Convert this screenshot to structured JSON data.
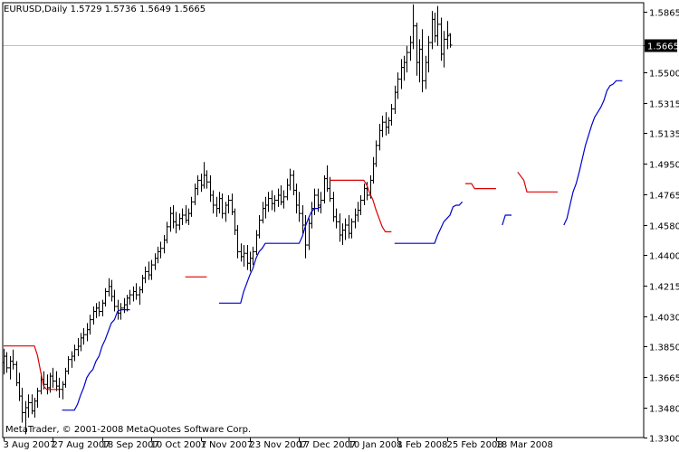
{
  "header": {
    "title": "EURUSD,Daily  1.5729 1.5736 1.5649 1.5665"
  },
  "footer": {
    "copyright": "MetaTrader, © 2001-2008 MetaQuotes Software Corp."
  },
  "colors": {
    "background": "#ffffff",
    "bars": "#000000",
    "stop_up": "#0000cc",
    "stop_down": "#dd0000",
    "current_line": "#c0c0c0",
    "price_tag": "#000000"
  },
  "chart_data": {
    "type": "ohlc",
    "symbol": "EURUSD",
    "timeframe": "Daily",
    "last_ohlc": {
      "open": 1.5729,
      "high": 1.5736,
      "low": 1.5649,
      "close": 1.5665
    },
    "current_price_label": "1.5665",
    "current_price": 1.5665,
    "ylim": [
      1.33,
      1.592
    ],
    "price_ticks": [
      "1.5865",
      "1.5665",
      "1.5500",
      "1.5315",
      "1.5135",
      "1.4950",
      "1.4765",
      "1.4580",
      "1.4400",
      "1.4215",
      "1.4030",
      "1.3850",
      "1.3665",
      "1.3480",
      "1.3300"
    ],
    "date_ticks": [
      "3 Aug 2007",
      "27 Aug 2007",
      "18 Sep 2007",
      "10 Oct 2007",
      "1 Nov 2007",
      "23 Nov 2007",
      "17 Dec 2007",
      "10 Jan 2008",
      "1 Feb 2008",
      "25 Feb 2008",
      "18 Mar 2008"
    ],
    "bars_per_tick": 16,
    "bars": [
      [
        1.3752,
        1.3835,
        1.368,
        1.379
      ],
      [
        1.379,
        1.3815,
        1.369,
        1.372
      ],
      [
        1.372,
        1.379,
        1.365,
        1.376
      ],
      [
        1.376,
        1.383,
        1.371,
        1.374
      ],
      [
        1.374,
        1.376,
        1.361,
        1.363
      ],
      [
        1.363,
        1.369,
        1.352,
        1.355
      ],
      [
        1.355,
        1.36,
        1.339,
        1.345
      ],
      [
        1.345,
        1.352,
        1.332,
        1.348
      ],
      [
        1.348,
        1.356,
        1.342,
        1.351
      ],
      [
        1.351,
        1.356,
        1.344,
        1.346
      ],
      [
        1.346,
        1.354,
        1.342,
        1.352
      ],
      [
        1.352,
        1.36,
        1.348,
        1.358
      ],
      [
        1.358,
        1.369,
        1.356,
        1.365
      ],
      [
        1.365,
        1.37,
        1.359,
        1.362
      ],
      [
        1.362,
        1.368,
        1.356,
        1.36
      ],
      [
        1.36,
        1.369,
        1.357,
        1.367
      ],
      [
        1.367,
        1.372,
        1.36,
        1.364
      ],
      [
        1.364,
        1.37,
        1.358,
        1.361
      ],
      [
        1.361,
        1.366,
        1.354,
        1.359
      ],
      [
        1.359,
        1.364,
        1.353,
        1.362
      ],
      [
        1.362,
        1.372,
        1.36,
        1.37
      ],
      [
        1.37,
        1.379,
        1.368,
        1.377
      ],
      [
        1.377,
        1.382,
        1.372,
        1.379
      ],
      [
        1.379,
        1.386,
        1.376,
        1.383
      ],
      [
        1.383,
        1.39,
        1.379,
        1.385
      ],
      [
        1.385,
        1.393,
        1.382,
        1.39
      ],
      [
        1.39,
        1.396,
        1.386,
        1.392
      ],
      [
        1.392,
        1.399,
        1.388,
        1.395
      ],
      [
        1.395,
        1.404,
        1.392,
        1.401
      ],
      [
        1.401,
        1.409,
        1.398,
        1.406
      ],
      [
        1.406,
        1.411,
        1.402,
        1.408
      ],
      [
        1.408,
        1.412,
        1.403,
        1.406
      ],
      [
        1.406,
        1.413,
        1.403,
        1.411
      ],
      [
        1.411,
        1.42,
        1.409,
        1.418
      ],
      [
        1.418,
        1.426,
        1.415,
        1.421
      ],
      [
        1.421,
        1.425,
        1.412,
        1.415
      ],
      [
        1.415,
        1.419,
        1.406,
        1.409
      ],
      [
        1.409,
        1.413,
        1.401,
        1.405
      ],
      [
        1.405,
        1.411,
        1.401,
        1.408
      ],
      [
        1.408,
        1.414,
        1.405,
        1.41
      ],
      [
        1.41,
        1.416,
        1.406,
        1.414
      ],
      [
        1.414,
        1.419,
        1.41,
        1.416
      ],
      [
        1.416,
        1.421,
        1.412,
        1.418
      ],
      [
        1.418,
        1.423,
        1.413,
        1.416
      ],
      [
        1.416,
        1.421,
        1.41,
        1.419
      ],
      [
        1.419,
        1.428,
        1.417,
        1.426
      ],
      [
        1.426,
        1.433,
        1.423,
        1.43
      ],
      [
        1.43,
        1.436,
        1.425,
        1.428
      ],
      [
        1.428,
        1.437,
        1.425,
        1.434
      ],
      [
        1.434,
        1.441,
        1.431,
        1.438
      ],
      [
        1.438,
        1.445,
        1.435,
        1.442
      ],
      [
        1.442,
        1.448,
        1.438,
        1.444
      ],
      [
        1.444,
        1.452,
        1.441,
        1.449
      ],
      [
        1.449,
        1.46,
        1.447,
        1.457
      ],
      [
        1.457,
        1.469,
        1.454,
        1.465
      ],
      [
        1.465,
        1.47,
        1.456,
        1.46
      ],
      [
        1.46,
        1.466,
        1.453,
        1.458
      ],
      [
        1.458,
        1.465,
        1.455,
        1.462
      ],
      [
        1.462,
        1.468,
        1.458,
        1.464
      ],
      [
        1.464,
        1.47,
        1.459,
        1.461
      ],
      [
        1.461,
        1.468,
        1.458,
        1.465
      ],
      [
        1.465,
        1.475,
        1.463,
        1.472
      ],
      [
        1.472,
        1.483,
        1.47,
        1.48
      ],
      [
        1.48,
        1.488,
        1.476,
        1.485
      ],
      [
        1.485,
        1.489,
        1.478,
        1.482
      ],
      [
        1.482,
        1.496,
        1.48,
        1.488
      ],
      [
        1.488,
        1.491,
        1.48,
        1.484
      ],
      [
        1.484,
        1.488,
        1.472,
        1.476
      ],
      [
        1.476,
        1.479,
        1.465,
        1.47
      ],
      [
        1.47,
        1.475,
        1.463,
        1.468
      ],
      [
        1.468,
        1.478,
        1.465,
        1.474
      ],
      [
        1.474,
        1.477,
        1.462,
        1.465
      ],
      [
        1.465,
        1.472,
        1.46,
        1.47
      ],
      [
        1.47,
        1.476,
        1.465,
        1.473
      ],
      [
        1.473,
        1.477,
        1.464,
        1.466
      ],
      [
        1.466,
        1.468,
        1.452,
        1.455
      ],
      [
        1.455,
        1.458,
        1.438,
        1.442
      ],
      [
        1.442,
        1.447,
        1.436,
        1.439
      ],
      [
        1.439,
        1.446,
        1.433,
        1.441
      ],
      [
        1.441,
        1.446,
        1.431,
        1.435
      ],
      [
        1.435,
        1.442,
        1.43,
        1.438
      ],
      [
        1.438,
        1.445,
        1.434,
        1.442
      ],
      [
        1.442,
        1.455,
        1.44,
        1.452
      ],
      [
        1.452,
        1.464,
        1.45,
        1.461
      ],
      [
        1.461,
        1.472,
        1.459,
        1.468
      ],
      [
        1.468,
        1.475,
        1.462,
        1.47
      ],
      [
        1.47,
        1.478,
        1.466,
        1.474
      ],
      [
        1.474,
        1.479,
        1.467,
        1.471
      ],
      [
        1.471,
        1.476,
        1.466,
        1.473
      ],
      [
        1.473,
        1.48,
        1.469,
        1.476
      ],
      [
        1.476,
        1.482,
        1.47,
        1.472
      ],
      [
        1.472,
        1.479,
        1.468,
        1.475
      ],
      [
        1.475,
        1.486,
        1.473,
        1.482
      ],
      [
        1.482,
        1.492,
        1.479,
        1.488
      ],
      [
        1.488,
        1.491,
        1.476,
        1.479
      ],
      [
        1.479,
        1.483,
        1.465,
        1.47
      ],
      [
        1.47,
        1.478,
        1.46,
        1.465
      ],
      [
        1.465,
        1.47,
        1.453,
        1.458
      ],
      [
        1.458,
        1.464,
        1.438,
        1.446
      ],
      [
        1.446,
        1.462,
        1.443,
        1.459
      ],
      [
        1.459,
        1.472,
        1.456,
        1.468
      ],
      [
        1.468,
        1.48,
        1.464,
        1.476
      ],
      [
        1.476,
        1.48,
        1.466,
        1.47
      ],
      [
        1.47,
        1.478,
        1.465,
        1.473
      ],
      [
        1.473,
        1.488,
        1.471,
        1.486
      ],
      [
        1.486,
        1.494,
        1.478,
        1.48
      ],
      [
        1.48,
        1.487,
        1.472,
        1.474
      ],
      [
        1.474,
        1.478,
        1.46,
        1.463
      ],
      [
        1.463,
        1.468,
        1.456,
        1.46
      ],
      [
        1.46,
        1.465,
        1.448,
        1.452
      ],
      [
        1.452,
        1.459,
        1.446,
        1.455
      ],
      [
        1.455,
        1.462,
        1.449,
        1.458
      ],
      [
        1.458,
        1.464,
        1.45,
        1.453
      ],
      [
        1.453,
        1.462,
        1.45,
        1.46
      ],
      [
        1.46,
        1.468,
        1.456,
        1.464
      ],
      [
        1.464,
        1.472,
        1.46,
        1.467
      ],
      [
        1.467,
        1.476,
        1.464,
        1.473
      ],
      [
        1.473,
        1.483,
        1.47,
        1.48
      ],
      [
        1.48,
        1.484,
        1.473,
        1.476
      ],
      [
        1.476,
        1.488,
        1.474,
        1.485
      ],
      [
        1.485,
        1.499,
        1.483,
        1.495
      ],
      [
        1.495,
        1.509,
        1.493,
        1.506
      ],
      [
        1.506,
        1.519,
        1.503,
        1.515
      ],
      [
        1.515,
        1.524,
        1.511,
        1.52
      ],
      [
        1.52,
        1.526,
        1.512,
        1.517
      ],
      [
        1.517,
        1.523,
        1.513,
        1.521
      ],
      [
        1.521,
        1.531,
        1.518,
        1.528
      ],
      [
        1.528,
        1.542,
        1.525,
        1.538
      ],
      [
        1.538,
        1.55,
        1.534,
        1.546
      ],
      [
        1.546,
        1.558,
        1.54,
        1.553
      ],
      [
        1.553,
        1.56,
        1.545,
        1.556
      ],
      [
        1.556,
        1.566,
        1.55,
        1.562
      ],
      [
        1.562,
        1.572,
        1.557,
        1.568
      ],
      [
        1.568,
        1.591,
        1.564,
        1.578
      ],
      [
        1.578,
        1.58,
        1.548,
        1.556
      ],
      [
        1.556,
        1.57,
        1.544,
        1.564
      ],
      [
        1.564,
        1.576,
        1.538,
        1.545
      ],
      [
        1.545,
        1.56,
        1.54,
        1.556
      ],
      [
        1.556,
        1.572,
        1.55,
        1.568
      ],
      [
        1.568,
        1.587,
        1.564,
        1.582
      ],
      [
        1.582,
        1.586,
        1.568,
        1.572
      ],
      [
        1.572,
        1.59,
        1.566,
        1.579
      ],
      [
        1.579,
        1.583,
        1.557,
        1.561
      ],
      [
        1.561,
        1.575,
        1.553,
        1.57
      ],
      [
        1.57,
        1.581,
        1.564,
        1.572
      ],
      [
        1.5729,
        1.5736,
        1.5649,
        1.5665
      ]
    ],
    "stops": [
      {
        "color": "down",
        "points": [
          [
            0,
            1.3852
          ],
          [
            10,
            1.3852
          ],
          [
            11,
            1.3795
          ],
          [
            12,
            1.37
          ],
          [
            13,
            1.361
          ],
          [
            14,
            1.359
          ],
          [
            15,
            1.359
          ],
          [
            18,
            1.359
          ]
        ]
      },
      {
        "color": "up",
        "points": [
          [
            19,
            1.3465
          ],
          [
            23,
            1.3465
          ],
          [
            24,
            1.35
          ],
          [
            25,
            1.3555
          ],
          [
            26,
            1.36
          ],
          [
            27,
            1.366
          ],
          [
            28,
            1.369
          ],
          [
            29,
            1.371
          ],
          [
            30,
            1.376
          ],
          [
            31,
            1.379
          ],
          [
            32,
            1.385
          ],
          [
            33,
            1.389
          ],
          [
            34,
            1.394
          ],
          [
            35,
            1.399
          ],
          [
            36,
            1.401
          ],
          [
            37,
            1.406
          ],
          [
            38,
            1.407
          ],
          [
            40,
            1.407
          ],
          [
            41,
            1.407
          ]
        ]
      },
      {
        "color": "down",
        "points": [
          [
            59,
            1.4268
          ],
          [
            66,
            1.4268
          ]
        ]
      },
      {
        "color": "up",
        "points": [
          [
            70,
            1.411
          ],
          [
            77,
            1.411
          ],
          [
            78,
            1.418
          ],
          [
            79,
            1.423
          ],
          [
            80,
            1.428
          ],
          [
            81,
            1.432
          ],
          [
            82,
            1.438
          ],
          [
            83,
            1.442
          ],
          [
            84,
            1.444
          ],
          [
            85,
            1.447
          ],
          [
            86,
            1.447
          ],
          [
            96,
            1.447
          ],
          [
            97,
            1.451
          ],
          [
            98,
            1.457
          ],
          [
            99,
            1.462
          ],
          [
            100,
            1.466
          ],
          [
            101,
            1.468
          ],
          [
            102,
            1.468
          ],
          [
            103,
            1.469
          ]
        ]
      },
      {
        "color": "down",
        "points": [
          [
            106,
            1.485
          ],
          [
            117,
            1.485
          ],
          [
            118,
            1.482
          ],
          [
            119,
            1.477
          ],
          [
            120,
            1.473
          ],
          [
            121,
            1.467
          ],
          [
            122,
            1.462
          ],
          [
            123,
            1.457
          ],
          [
            124,
            1.454
          ],
          [
            126,
            1.454
          ]
        ]
      },
      {
        "color": "up",
        "points": [
          [
            127,
            1.447
          ],
          [
            140,
            1.447
          ],
          [
            141,
            1.452
          ],
          [
            142,
            1.456
          ],
          [
            143,
            1.46
          ],
          [
            144,
            1.462
          ],
          [
            145,
            1.464
          ],
          [
            146,
            1.469
          ],
          [
            147,
            1.47
          ],
          [
            148,
            1.47
          ],
          [
            149,
            1.472
          ]
        ]
      },
      {
        "color": "down",
        "points": [
          [
            150,
            1.483
          ],
          [
            152,
            1.483
          ],
          [
            153,
            1.48
          ],
          [
            160,
            1.48
          ]
        ]
      },
      {
        "color": "up",
        "points": [
          [
            162,
            1.458
          ],
          [
            163,
            1.464
          ],
          [
            165,
            1.464
          ]
        ]
      },
      {
        "color": "down",
        "points": [
          [
            167,
            1.49
          ],
          [
            169,
            1.485
          ],
          [
            170,
            1.478
          ],
          [
            180,
            1.478
          ]
        ]
      },
      {
        "color": "up",
        "points": [
          [
            182,
            1.458
          ],
          [
            183,
            1.462
          ],
          [
            184,
            1.47
          ],
          [
            185,
            1.478
          ],
          [
            186,
            1.483
          ],
          [
            187,
            1.49
          ],
          [
            188,
            1.498
          ],
          [
            189,
            1.506
          ],
          [
            190,
            1.512
          ],
          [
            191,
            1.518
          ],
          [
            192,
            1.523
          ],
          [
            193,
            1.526
          ],
          [
            194,
            1.529
          ],
          [
            195,
            1.533
          ],
          [
            196,
            1.539
          ],
          [
            197,
            1.542
          ],
          [
            198,
            1.543
          ],
          [
            199,
            1.545
          ],
          [
            200,
            1.545
          ],
          [
            201,
            1.545
          ]
        ]
      }
    ]
  }
}
